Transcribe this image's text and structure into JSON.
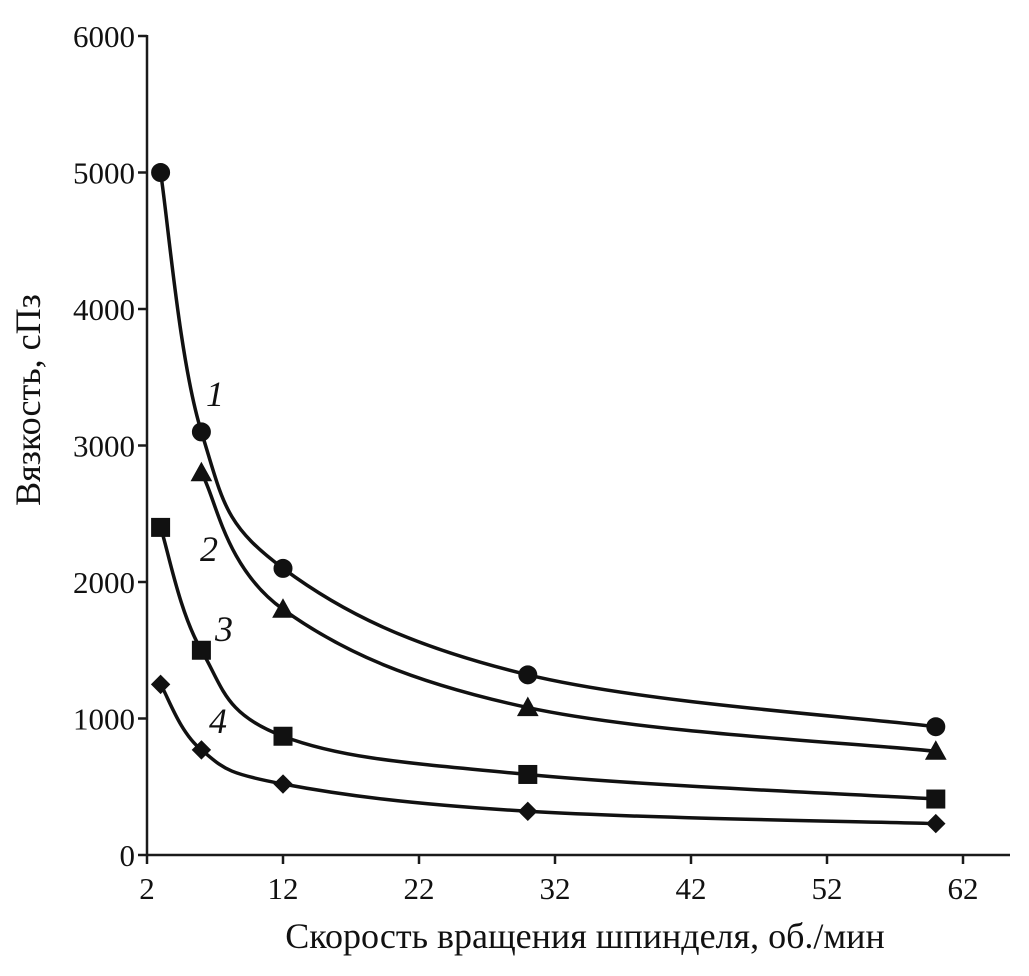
{
  "chart_data": {
    "type": "line",
    "xlabel": "Скорость вращения шпинделя, об./мин",
    "ylabel": "Вязкость, сПз",
    "xlim": [
      2,
      64
    ],
    "ylim": [
      0,
      6000
    ],
    "x_ticks": [
      "2",
      "12",
      "22",
      "32",
      "42",
      "52",
      "62"
    ],
    "y_ticks": [
      "0",
      "1000",
      "2000",
      "3000",
      "4000",
      "5000",
      "6000"
    ],
    "x": [
      3,
      6,
      12,
      30,
      60
    ],
    "grid": false,
    "legend": "none",
    "series": [
      {
        "name": "1",
        "marker": "circle",
        "values": [
          5000,
          3100,
          2100,
          1320,
          940
        ]
      },
      {
        "name": "2",
        "marker": "triangle",
        "values": [
          null,
          2800,
          1800,
          1080,
          760
        ]
      },
      {
        "name": "3",
        "marker": "square",
        "values": [
          2400,
          1500,
          870,
          590,
          410
        ]
      },
      {
        "name": "4",
        "marker": "diamond",
        "values": [
          1250,
          770,
          520,
          320,
          230
        ]
      }
    ],
    "annotations": [
      "1",
      "2",
      "3",
      "4"
    ]
  }
}
